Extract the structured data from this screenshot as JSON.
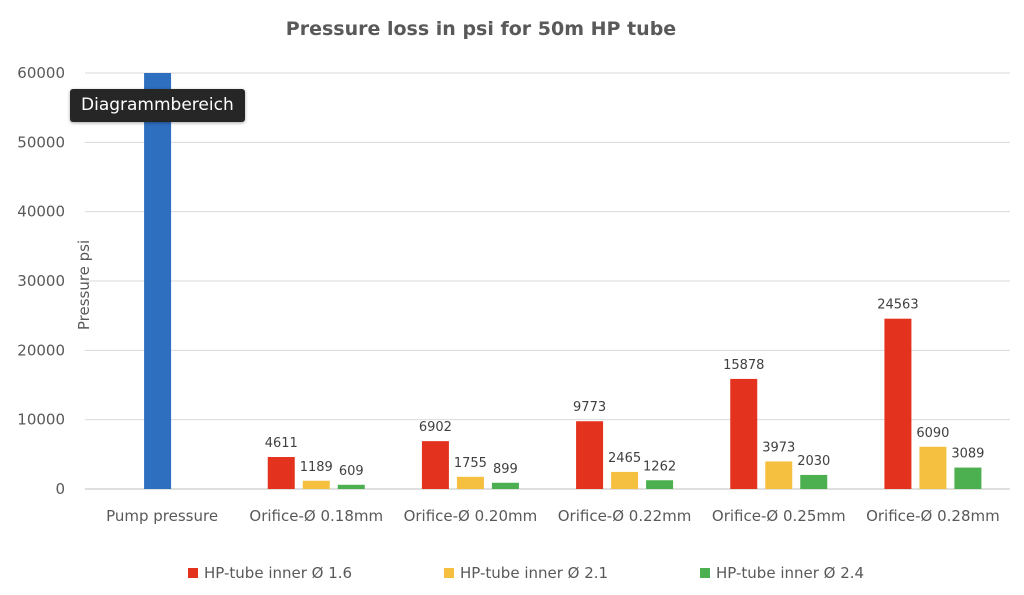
{
  "chart_data": {
    "type": "bar",
    "title": "Pressure loss in psi for 50m HP tube",
    "ylabel": "Pressure psi",
    "xlabel": "",
    "ylim": [
      0,
      60000
    ],
    "yticks": [
      0,
      10000,
      20000,
      30000,
      40000,
      50000,
      60000
    ],
    "grid": true,
    "legend_position": "bottom",
    "categories": [
      "Pump pressure",
      "Orifice-Ø 0.18mm",
      "Orifice-Ø 0.20mm",
      "Orifice-Ø 0.22mm",
      "Orifice-Ø 0.25mm",
      "Orifice-Ø 0.28mm"
    ],
    "pump_bar": {
      "category": "Pump pressure",
      "value": 60000,
      "color": "#2E6FBF"
    },
    "series": [
      {
        "name": "HP-tube inner Ø 1.6",
        "color": "#E3321E",
        "values": [
          null,
          4611,
          6902,
          9773,
          15878,
          24563
        ]
      },
      {
        "name": "HP-tube inner Ø 2.1",
        "color": "#F5C040",
        "values": [
          null,
          1189,
          1755,
          2465,
          3973,
          6090
        ]
      },
      {
        "name": "HP-tube inner Ø 2.4",
        "color": "#4CAF50",
        "values": [
          null,
          609,
          899,
          1262,
          2030,
          3089
        ]
      }
    ]
  },
  "tooltip": {
    "text": "Diagrammbereich"
  }
}
